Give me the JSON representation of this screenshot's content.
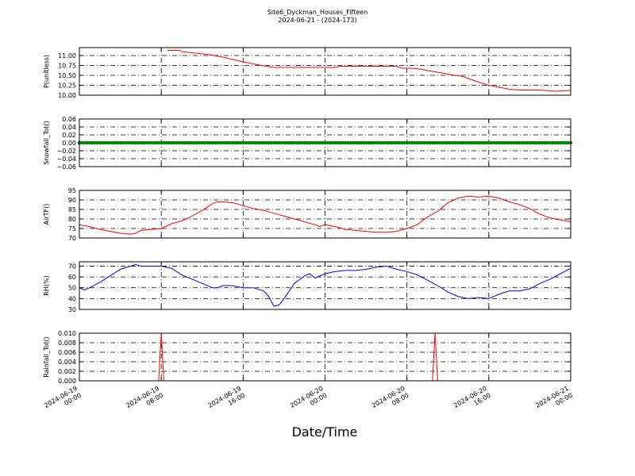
{
  "figure": {
    "title": "Site6_Dyckman_Houses_Fifteen",
    "subtitle": "2024-06-21 - (2024-173)",
    "xlabel": "Date/Time",
    "x_ticks": [
      {
        "t": 0,
        "l1": "2024-06-19",
        "l2": "00:00"
      },
      {
        "t": 8,
        "l1": "2024-06-19",
        "l2": "08:00"
      },
      {
        "t": 16,
        "l1": "2024-06-19",
        "l2": "16:00"
      },
      {
        "t": 24,
        "l1": "2024-06-20",
        "l2": "00:00"
      },
      {
        "t": 32,
        "l1": "2024-06-20",
        "l2": "08:00"
      },
      {
        "t": 40,
        "l1": "2024-06-20",
        "l2": "16:00"
      },
      {
        "t": 48,
        "l1": "2024-06-21",
        "l2": "00:00"
      }
    ]
  },
  "chart_data": [
    {
      "type": "line",
      "ylabel": "P(unitless)",
      "ylim": [
        10.0,
        11.2
      ],
      "yticks": [
        "10.00",
        "10.25",
        "10.50",
        "10.75",
        "11.00"
      ],
      "ytick_values": [
        10.0,
        10.25,
        10.5,
        10.75,
        11.0
      ],
      "color": "#ff0000",
      "grid": true,
      "x_hours": [
        8.6,
        9.8,
        10.0,
        11.0,
        12.5,
        14.0,
        15.0,
        16.0,
        17.0,
        18.0,
        19.0,
        25.0,
        25.5,
        31.0,
        31.5,
        32.5,
        33.5,
        34.0,
        35.0,
        36.0,
        37.5,
        38.0,
        39.0,
        40.0,
        41.0,
        42.0,
        43.0,
        45.0,
        46.5,
        48.0
      ],
      "y_values": [
        11.13,
        11.13,
        11.1,
        11.07,
        11.03,
        10.96,
        10.9,
        10.84,
        10.79,
        10.74,
        10.7,
        10.7,
        10.73,
        10.73,
        10.68,
        10.68,
        10.65,
        10.62,
        10.58,
        10.53,
        10.47,
        10.42,
        10.33,
        10.25,
        10.2,
        10.15,
        10.13,
        10.13,
        10.1,
        10.12
      ]
    },
    {
      "type": "scatter",
      "ylabel": "Snowfall_Tot()",
      "ylim": [
        -0.06,
        0.06
      ],
      "yticks": [
        "−0.06",
        "−0.04",
        "−0.02",
        "0.00",
        "0.02",
        "0.04",
        "0.06"
      ],
      "ytick_values": [
        -0.06,
        -0.04,
        -0.02,
        0.0,
        0.02,
        0.04,
        0.06
      ],
      "color": "#008000",
      "grid": true,
      "constant_value": 0.0,
      "x_range": [
        0,
        48
      ]
    },
    {
      "type": "line",
      "ylabel": "AirTF()",
      "ylim": [
        70,
        95
      ],
      "yticks": [
        "70",
        "75",
        "80",
        "85",
        "90",
        "95"
      ],
      "ytick_values": [
        70,
        75,
        80,
        85,
        90,
        95
      ],
      "color": "#ff0000",
      "grid": true,
      "x_hours": [
        0,
        1,
        2,
        3,
        4,
        5,
        5.5,
        6,
        7,
        8,
        9,
        10,
        11,
        12,
        13,
        13.5,
        14,
        15,
        16,
        17,
        18,
        19,
        20,
        21,
        22,
        23,
        23.5,
        24,
        25,
        26,
        27,
        28,
        29,
        30,
        31,
        32,
        33,
        34,
        35,
        36,
        37,
        38,
        39,
        40,
        41,
        42,
        43,
        44,
        45,
        46,
        47,
        48
      ],
      "y_values": [
        77,
        76,
        74.5,
        73.5,
        72.5,
        72,
        72.5,
        74,
        74.5,
        75,
        77.5,
        79,
        81.5,
        84.5,
        88,
        89,
        89,
        88.5,
        87,
        85.5,
        84.5,
        83,
        81.5,
        80,
        78.5,
        77,
        76,
        77,
        76,
        74.5,
        74,
        73.5,
        73,
        73,
        73.5,
        75,
        77,
        81,
        84,
        88.5,
        91,
        92,
        91.5,
        92,
        91,
        89,
        87.5,
        85.5,
        82.5,
        80.5,
        79.5,
        78.5
      ]
    },
    {
      "type": "line",
      "ylabel": "RH(%)",
      "ylim": [
        30,
        74
      ],
      "yticks": [
        "30",
        "40",
        "50",
        "60",
        "70"
      ],
      "ytick_values": [
        30,
        40,
        50,
        60,
        70
      ],
      "color": "#0000ff",
      "grid": true,
      "x_hours": [
        0,
        0.5,
        1,
        2,
        3,
        4,
        5,
        5.5,
        6,
        7,
        8,
        9,
        10,
        11,
        12,
        13,
        13.5,
        14,
        15,
        16,
        17,
        18,
        18.5,
        19,
        19.5,
        20,
        21,
        22,
        22.5,
        23,
        24,
        25,
        26,
        27,
        28,
        29,
        30,
        31,
        32,
        33,
        34,
        35,
        36,
        37,
        38,
        39,
        40,
        41,
        42,
        43,
        44,
        45,
        46,
        47,
        48
      ],
      "y_values": [
        50,
        48,
        50,
        55,
        61,
        67,
        70,
        71.5,
        70,
        70,
        70,
        68,
        62,
        58,
        54,
        50,
        50,
        52,
        52,
        50,
        50,
        47,
        42,
        33,
        34,
        40,
        54,
        61,
        63,
        59,
        63,
        65,
        66,
        66,
        67,
        69,
        70,
        67,
        65,
        62,
        57,
        52,
        46,
        42,
        40,
        41,
        40,
        44,
        47,
        47,
        49,
        54,
        58,
        63,
        68
      ]
    },
    {
      "type": "line",
      "ylabel": "Rainfall_Tot()",
      "ylim": [
        0.0,
        0.01
      ],
      "yticks": [
        "0.000",
        "0.002",
        "0.004",
        "0.006",
        "0.008",
        "0.010"
      ],
      "ytick_values": [
        0.0,
        0.002,
        0.004,
        0.006,
        0.008,
        0.01
      ],
      "color": "#ff0000",
      "grid": true,
      "x_hours": [
        0,
        7.75,
        8.0,
        8.25,
        34.5,
        34.75,
        35.0,
        48
      ],
      "y_values": [
        0,
        0,
        0.01,
        0,
        0,
        0.01,
        0,
        0
      ]
    }
  ]
}
